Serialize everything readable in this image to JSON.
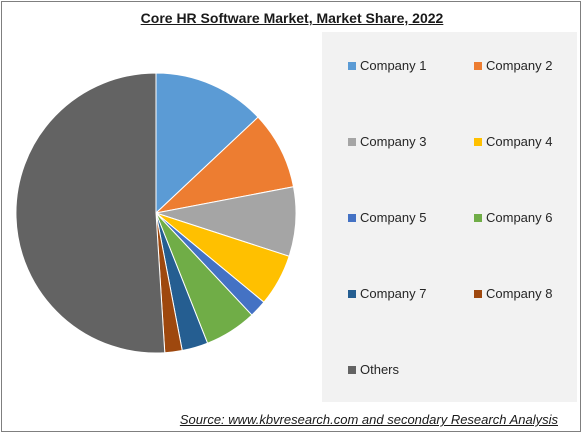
{
  "chart_data": {
    "type": "pie",
    "title": "Core HR Software Market, Market Share, 2022",
    "series": [
      {
        "name": "Company 1",
        "value": 13,
        "color": "#5b9bd5"
      },
      {
        "name": "Company 2",
        "value": 9,
        "color": "#ed7d31"
      },
      {
        "name": "Company 3",
        "value": 8,
        "color": "#a5a5a5"
      },
      {
        "name": "Company 4",
        "value": 6,
        "color": "#ffc000"
      },
      {
        "name": "Company 5",
        "value": 2,
        "color": "#4472c4"
      },
      {
        "name": "Company 6",
        "value": 6,
        "color": "#70ad47"
      },
      {
        "name": "Company 7",
        "value": 3,
        "color": "#255e91"
      },
      {
        "name": "Company 8",
        "value": 2,
        "color": "#9e480e"
      },
      {
        "name": "Others",
        "value": 51,
        "color": "#636363"
      }
    ],
    "legend_position": "right"
  },
  "source": "Source: www.kbvresearch.com and secondary Research Analysis"
}
